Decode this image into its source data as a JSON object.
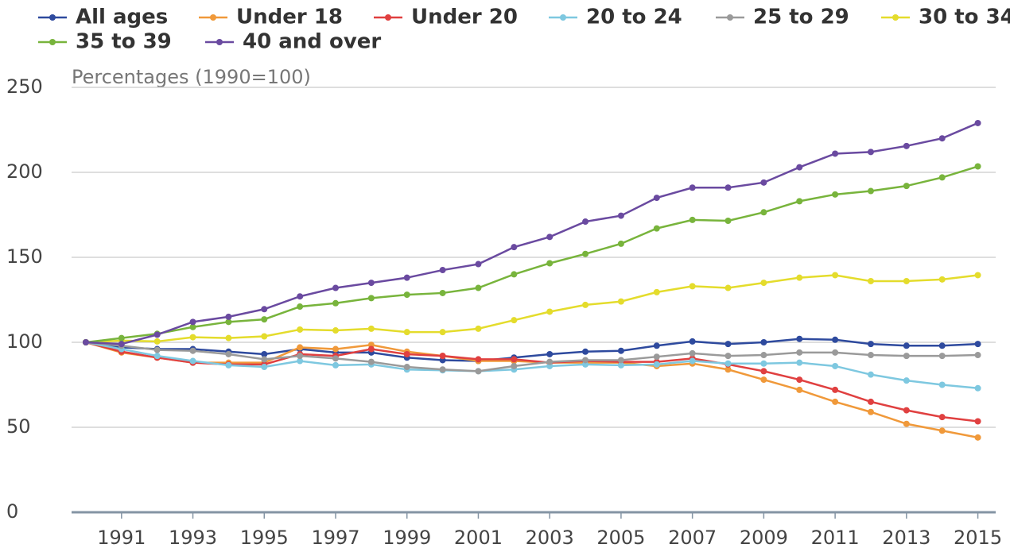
{
  "chart_data": {
    "type": "line",
    "y_axis_label": "Percentages (1990=100)",
    "x": [
      1990,
      1991,
      1992,
      1993,
      1994,
      1995,
      1996,
      1997,
      1998,
      1999,
      2000,
      2001,
      2002,
      2003,
      2004,
      2005,
      2006,
      2007,
      2008,
      2009,
      2010,
      2011,
      2012,
      2013,
      2014,
      2015
    ],
    "xlim": [
      1989.6,
      2015.5
    ],
    "xticks": [
      1991,
      1993,
      1995,
      1997,
      1999,
      2001,
      2003,
      2005,
      2007,
      2009,
      2011,
      2013,
      2015
    ],
    "ylim": [
      0,
      250
    ],
    "yticks": [
      0,
      50,
      100,
      150,
      200,
      250
    ],
    "grid": true,
    "legend": "top",
    "series": [
      {
        "name": "All ages",
        "color": "#2e4a9e",
        "values": [
          100,
          97,
          96,
          96,
          94.5,
          93,
          96,
          94,
          94,
          91,
          89.5,
          89,
          91,
          93,
          94.5,
          95,
          98,
          100.5,
          99,
          100,
          102,
          101.5,
          99,
          98,
          98,
          99
        ]
      },
      {
        "name": "Under 18",
        "color": "#f0993a",
        "values": [
          100,
          94,
          91,
          88,
          88,
          88,
          97,
          96,
          98.5,
          94.5,
          92,
          89,
          89,
          88,
          88,
          88,
          86,
          87.5,
          84,
          78,
          72,
          65,
          59,
          52,
          48,
          44
        ]
      },
      {
        "name": "Under 20",
        "color": "#e04040",
        "values": [
          100,
          94.5,
          91,
          88,
          87,
          87,
          93,
          92,
          96,
          93,
          92,
          90,
          90,
          88,
          89,
          88.5,
          88.5,
          90.5,
          87,
          83,
          78,
          72,
          65,
          60,
          56,
          53.5
        ]
      },
      {
        "name": "20 to 24",
        "color": "#7ec8e0",
        "values": [
          100,
          96,
          92,
          89,
          86.5,
          85.5,
          89,
          86.5,
          87,
          84,
          83.5,
          83,
          84,
          86,
          87,
          86.5,
          87,
          89,
          87.5,
          87.5,
          88,
          86,
          81,
          77.5,
          75,
          73
        ]
      },
      {
        "name": "25 to 29",
        "color": "#9a9a9a",
        "values": [
          100,
          98,
          95.5,
          95,
          93,
          90,
          92,
          90.5,
          88.5,
          85.5,
          84,
          83,
          86,
          88.5,
          89.5,
          89.5,
          91.5,
          93.5,
          92,
          92.5,
          94,
          94,
          92.5,
          92,
          92,
          92.5
        ]
      },
      {
        "name": "30 to 34",
        "color": "#e4dc2c",
        "values": [
          100,
          101,
          100.5,
          103,
          102.5,
          103.5,
          107.5,
          107,
          108,
          106,
          106,
          108,
          113,
          118,
          122,
          124,
          129.5,
          133,
          132,
          135,
          138,
          139.5,
          136,
          136,
          137,
          139.5
        ]
      },
      {
        "name": "35 to 39",
        "color": "#78b43c",
        "values": [
          100,
          102.5,
          105,
          109,
          112,
          113.5,
          121,
          123,
          126,
          128,
          129,
          132,
          140,
          146.5,
          152,
          158,
          167,
          172,
          171.5,
          176.5,
          183,
          187,
          189,
          192,
          197,
          203.5
        ]
      },
      {
        "name": "40 and over",
        "color": "#6a4aa0",
        "values": [
          100,
          99,
          104.5,
          112,
          115,
          119.5,
          127,
          132,
          135,
          138,
          142.5,
          146,
          156,
          162,
          171,
          174.5,
          185,
          191,
          191,
          194,
          203,
          211,
          212,
          215.5,
          220,
          229
        ]
      }
    ]
  }
}
